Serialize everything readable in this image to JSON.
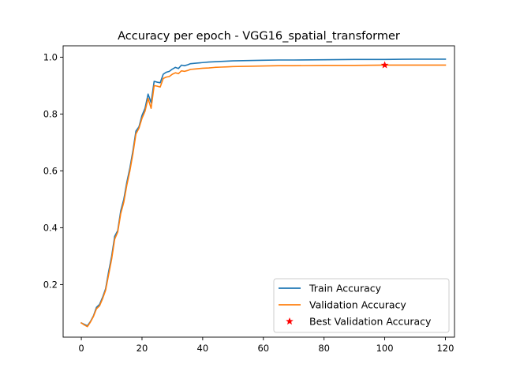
{
  "chart_data": {
    "type": "line",
    "title": "Accuracy per epoch - VGG16_spatial_transformer",
    "xlabel": "",
    "ylabel": "",
    "xlim": [
      -6,
      123
    ],
    "ylim": [
      0.015,
      1.04
    ],
    "xticks": [
      0,
      20,
      40,
      60,
      80,
      100,
      120
    ],
    "yticks": [
      0.2,
      0.4,
      0.6,
      0.8,
      1.0
    ],
    "ytick_labels": [
      "0.2",
      "0.4",
      "0.6",
      "0.8",
      "1.0"
    ],
    "grid": false,
    "legend_position": "lower-right",
    "series": [
      {
        "name": "Train Accuracy",
        "color": "#1f77b4",
        "points": [
          [
            0,
            0.065
          ],
          [
            1,
            0.06
          ],
          [
            2,
            0.055
          ],
          [
            3,
            0.07
          ],
          [
            4,
            0.09
          ],
          [
            5,
            0.12
          ],
          [
            6,
            0.13
          ],
          [
            7,
            0.155
          ],
          [
            8,
            0.185
          ],
          [
            9,
            0.245
          ],
          [
            10,
            0.3
          ],
          [
            11,
            0.37
          ],
          [
            12,
            0.39
          ],
          [
            13,
            0.46
          ],
          [
            14,
            0.5
          ],
          [
            15,
            0.56
          ],
          [
            16,
            0.61
          ],
          [
            17,
            0.67
          ],
          [
            18,
            0.74
          ],
          [
            19,
            0.755
          ],
          [
            20,
            0.795
          ],
          [
            21,
            0.82
          ],
          [
            22,
            0.87
          ],
          [
            23,
            0.84
          ],
          [
            24,
            0.915
          ],
          [
            25,
            0.912
          ],
          [
            26,
            0.91
          ],
          [
            27,
            0.94
          ],
          [
            28,
            0.947
          ],
          [
            29,
            0.95
          ],
          [
            30,
            0.958
          ],
          [
            31,
            0.964
          ],
          [
            32,
            0.96
          ],
          [
            33,
            0.972
          ],
          [
            34,
            0.97
          ],
          [
            35,
            0.973
          ],
          [
            36,
            0.977
          ],
          [
            38,
            0.979
          ],
          [
            40,
            0.981
          ],
          [
            42,
            0.983
          ],
          [
            44,
            0.984
          ],
          [
            46,
            0.985
          ],
          [
            48,
            0.986
          ],
          [
            50,
            0.987
          ],
          [
            55,
            0.988
          ],
          [
            60,
            0.989
          ],
          [
            65,
            0.99
          ],
          [
            70,
            0.99
          ],
          [
            80,
            0.991
          ],
          [
            90,
            0.992
          ],
          [
            100,
            0.992
          ],
          [
            110,
            0.993
          ],
          [
            120,
            0.993
          ]
        ]
      },
      {
        "name": "Validation Accuracy",
        "color": "#ff7f0e",
        "points": [
          [
            0,
            0.065
          ],
          [
            1,
            0.058
          ],
          [
            2,
            0.052
          ],
          [
            3,
            0.068
          ],
          [
            4,
            0.088
          ],
          [
            5,
            0.115
          ],
          [
            6,
            0.125
          ],
          [
            7,
            0.15
          ],
          [
            8,
            0.18
          ],
          [
            9,
            0.235
          ],
          [
            10,
            0.29
          ],
          [
            11,
            0.36
          ],
          [
            12,
            0.385
          ],
          [
            13,
            0.45
          ],
          [
            14,
            0.49
          ],
          [
            15,
            0.55
          ],
          [
            16,
            0.6
          ],
          [
            17,
            0.66
          ],
          [
            18,
            0.73
          ],
          [
            19,
            0.75
          ],
          [
            20,
            0.785
          ],
          [
            21,
            0.81
          ],
          [
            22,
            0.855
          ],
          [
            23,
            0.82
          ],
          [
            24,
            0.9
          ],
          [
            25,
            0.898
          ],
          [
            26,
            0.895
          ],
          [
            27,
            0.925
          ],
          [
            28,
            0.93
          ],
          [
            29,
            0.932
          ],
          [
            30,
            0.94
          ],
          [
            31,
            0.945
          ],
          [
            32,
            0.942
          ],
          [
            33,
            0.952
          ],
          [
            34,
            0.95
          ],
          [
            35,
            0.953
          ],
          [
            36,
            0.957
          ],
          [
            38,
            0.959
          ],
          [
            40,
            0.961
          ],
          [
            42,
            0.962
          ],
          [
            44,
            0.964
          ],
          [
            46,
            0.965
          ],
          [
            48,
            0.966
          ],
          [
            50,
            0.967
          ],
          [
            55,
            0.968
          ],
          [
            60,
            0.969
          ],
          [
            65,
            0.97
          ],
          [
            70,
            0.97
          ],
          [
            80,
            0.971
          ],
          [
            90,
            0.971
          ],
          [
            100,
            0.972
          ],
          [
            110,
            0.972
          ],
          [
            120,
            0.972
          ]
        ]
      },
      {
        "name": "Best Validation Accuracy",
        "color": "#ff0000",
        "marker": "star",
        "points": [
          [
            100,
            0.972
          ]
        ]
      }
    ]
  }
}
